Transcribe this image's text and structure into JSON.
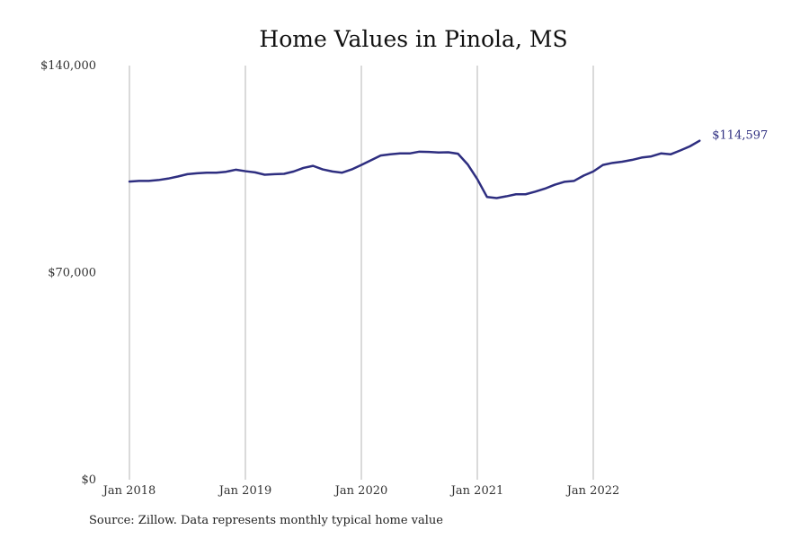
{
  "chart_data": {
    "type": "line",
    "title": "Home Values in Pinola, MS",
    "xlabel": "",
    "ylabel": "",
    "ylim": [
      0,
      140000
    ],
    "y_ticks": [
      {
        "value": 0,
        "label": "$0"
      },
      {
        "value": 70000,
        "label": "$70,000"
      },
      {
        "value": 140000,
        "label": "$140,000"
      }
    ],
    "x_ticks": [
      {
        "index": 0,
        "label": "Jan 2018"
      },
      {
        "index": 12,
        "label": "Jan 2019"
      },
      {
        "index": 24,
        "label": "Jan 2020"
      },
      {
        "index": 36,
        "label": "Jan 2021"
      },
      {
        "index": 48,
        "label": "Jan 2022"
      }
    ],
    "grid": {
      "vertical": true,
      "horizontal": false
    },
    "legend": "none",
    "x_start": "2018-01",
    "x_end": "2022-12",
    "series": [
      {
        "color": "#2e2e80",
        "end_label": "$114,597",
        "values": [
          100800,
          101000,
          101000,
          101300,
          101800,
          102500,
          103300,
          103600,
          103800,
          103800,
          104100,
          104800,
          104300,
          103900,
          103100,
          103300,
          103400,
          104200,
          105400,
          106100,
          104900,
          104200,
          103800,
          104900,
          106400,
          108000,
          109600,
          110000,
          110300,
          110300,
          110900,
          110800,
          110600,
          110700,
          110200,
          106600,
          101600,
          95600,
          95200,
          95800,
          96500,
          96500,
          97400,
          98400,
          99700,
          100700,
          101000,
          102800,
          104200,
          106400,
          107100,
          107500,
          108100,
          108900,
          109300,
          110300,
          110000,
          111300,
          112700,
          114597
        ]
      }
    ]
  },
  "footer": {
    "source": "Source: Zillow. Data represents monthly typical home value"
  }
}
